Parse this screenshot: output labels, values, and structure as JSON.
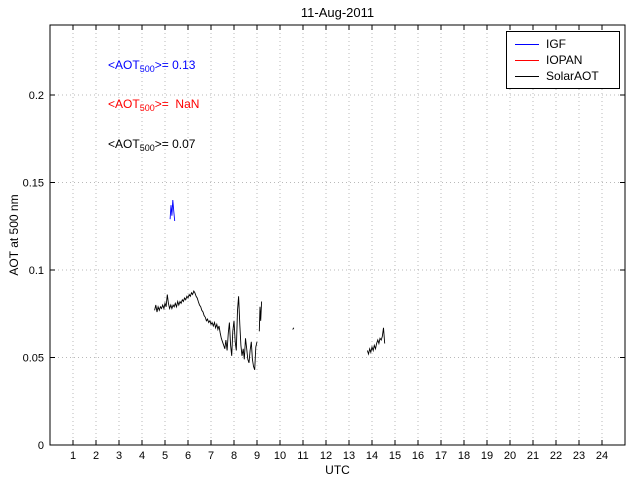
{
  "chart_data": {
    "type": "line",
    "title": "11-Aug-2011",
    "xlabel": "UTC",
    "ylabel": "AOT at 500 nm",
    "xlim": [
      0,
      25
    ],
    "ylim": [
      0,
      0.24
    ],
    "xticks": [
      1,
      2,
      3,
      4,
      5,
      6,
      7,
      8,
      9,
      10,
      11,
      12,
      13,
      14,
      15,
      16,
      17,
      18,
      19,
      20,
      21,
      22,
      23,
      24
    ],
    "yticks": [
      0,
      0.05,
      0.1,
      0.15,
      0.2
    ],
    "ytick_labels": [
      "0",
      "0.05",
      "0.1",
      "0.15",
      "0.2"
    ],
    "grid": true,
    "legend": {
      "position": "top-right",
      "entries": [
        {
          "label": "IGF",
          "color": "#0000ff"
        },
        {
          "label": "IOPAN",
          "color": "#ff0000"
        },
        {
          "label": "SolarAOT",
          "color": "#000000"
        }
      ]
    },
    "annotations": [
      {
        "prefix": "<AOT",
        "sub": "500",
        "suffix": ">= 0.13",
        "color": "#0000ff"
      },
      {
        "prefix": "<AOT",
        "sub": "500",
        "suffix": ">=  NaN",
        "color": "#ff0000"
      },
      {
        "prefix": "<AOT",
        "sub": "500",
        "suffix": ">= 0.07",
        "color": "#000000"
      }
    ],
    "series": [
      {
        "name": "IGF",
        "color": "#0000ff",
        "mean_aot_500": 0.13,
        "segments": [
          [
            [
              5.22,
              0.129
            ],
            [
              5.26,
              0.137
            ],
            [
              5.3,
              0.131
            ],
            [
              5.34,
              0.14
            ],
            [
              5.38,
              0.134
            ],
            [
              5.42,
              0.128
            ]
          ]
        ]
      },
      {
        "name": "IOPAN",
        "color": "#ff0000",
        "mean_aot_500": "NaN",
        "segments": []
      },
      {
        "name": "SolarAOT",
        "color": "#000000",
        "mean_aot_500": 0.07,
        "segments": [
          [
            [
              4.55,
              0.077
            ],
            [
              4.6,
              0.08
            ],
            [
              4.65,
              0.076
            ],
            [
              4.7,
              0.079
            ],
            [
              4.75,
              0.077
            ],
            [
              4.8,
              0.079
            ],
            [
              4.85,
              0.078
            ],
            [
              4.9,
              0.08
            ],
            [
              4.95,
              0.078
            ],
            [
              5.0,
              0.081
            ],
            [
              5.05,
              0.079
            ],
            [
              5.1,
              0.086
            ],
            [
              5.15,
              0.081
            ],
            [
              5.2,
              0.078
            ],
            [
              5.25,
              0.08
            ],
            [
              5.3,
              0.078
            ],
            [
              5.35,
              0.08
            ],
            [
              5.4,
              0.079
            ],
            [
              5.45,
              0.081
            ],
            [
              5.5,
              0.079
            ],
            [
              5.55,
              0.082
            ],
            [
              5.6,
              0.08
            ],
            [
              5.65,
              0.082
            ],
            [
              5.7,
              0.081
            ],
            [
              5.75,
              0.083
            ],
            [
              5.8,
              0.082
            ],
            [
              5.85,
              0.084
            ],
            [
              5.9,
              0.083
            ],
            [
              5.95,
              0.085
            ],
            [
              6.0,
              0.084
            ],
            [
              6.05,
              0.086
            ],
            [
              6.1,
              0.085
            ],
            [
              6.15,
              0.087
            ],
            [
              6.2,
              0.086
            ],
            [
              6.25,
              0.088
            ],
            [
              6.3,
              0.087
            ],
            [
              6.35,
              0.085
            ],
            [
              6.4,
              0.084
            ],
            [
              6.45,
              0.082
            ],
            [
              6.5,
              0.08
            ],
            [
              6.55,
              0.079
            ],
            [
              6.6,
              0.077
            ],
            [
              6.65,
              0.076
            ],
            [
              6.7,
              0.074
            ],
            [
              6.75,
              0.073
            ],
            [
              6.8,
              0.071
            ],
            [
              6.85,
              0.072
            ],
            [
              6.9,
              0.07
            ],
            [
              6.95,
              0.071
            ],
            [
              7.0,
              0.069
            ],
            [
              7.05,
              0.07
            ],
            [
              7.1,
              0.068
            ],
            [
              7.15,
              0.07
            ],
            [
              7.2,
              0.067
            ],
            [
              7.25,
              0.069
            ],
            [
              7.3,
              0.066
            ],
            [
              7.35,
              0.068
            ],
            [
              7.4,
              0.064
            ],
            [
              7.45,
              0.061
            ],
            [
              7.5,
              0.059
            ],
            [
              7.55,
              0.057
            ],
            [
              7.6,
              0.055
            ],
            [
              7.65,
              0.06
            ],
            [
              7.7,
              0.054
            ],
            [
              7.75,
              0.064
            ],
            [
              7.8,
              0.07
            ],
            [
              7.85,
              0.057
            ],
            [
              7.9,
              0.051
            ],
            [
              7.95,
              0.065
            ],
            [
              8.0,
              0.071
            ],
            [
              8.05,
              0.059
            ],
            [
              8.1,
              0.054
            ],
            [
              8.15,
              0.077
            ],
            [
              8.2,
              0.085
            ],
            [
              8.25,
              0.069
            ],
            [
              8.3,
              0.057
            ],
            [
              8.35,
              0.051
            ],
            [
              8.4,
              0.055
            ],
            [
              8.45,
              0.049
            ],
            [
              8.5,
              0.061
            ],
            [
              8.55,
              0.055
            ],
            [
              8.6,
              0.049
            ],
            [
              8.65,
              0.047
            ],
            [
              8.7,
              0.054
            ],
            [
              8.75,
              0.059
            ],
            [
              8.8,
              0.049
            ],
            [
              8.85,
              0.045
            ],
            [
              8.9,
              0.043
            ],
            [
              8.95,
              0.056
            ],
            [
              9.0,
              0.059
            ]
          ],
          [
            [
              9.1,
              0.065
            ],
            [
              9.13,
              0.079
            ],
            [
              9.16,
              0.071
            ],
            [
              9.2,
              0.082
            ]
          ],
          [
            [
              10.55,
              0.066
            ],
            [
              10.6,
              0.067
            ]
          ],
          [
            [
              13.8,
              0.054
            ],
            [
              13.85,
              0.052
            ],
            [
              13.9,
              0.055
            ],
            [
              13.95,
              0.053
            ],
            [
              14.0,
              0.056
            ],
            [
              14.05,
              0.054
            ],
            [
              14.1,
              0.057
            ],
            [
              14.15,
              0.055
            ],
            [
              14.2,
              0.058
            ],
            [
              14.25,
              0.06
            ],
            [
              14.3,
              0.058
            ],
            [
              14.35,
              0.061
            ],
            [
              14.4,
              0.06
            ],
            [
              14.45,
              0.062
            ],
            [
              14.5,
              0.067
            ],
            [
              14.55,
              0.058
            ]
          ]
        ]
      }
    ]
  }
}
